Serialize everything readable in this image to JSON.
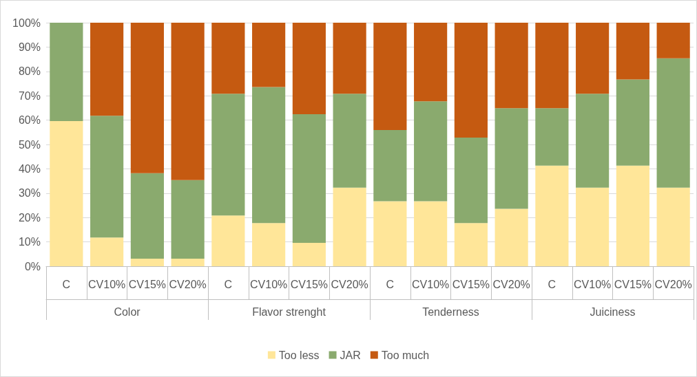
{
  "chart_data": {
    "type": "bar",
    "stacked": true,
    "categories": [
      "C",
      "CV10%",
      "CV15%",
      "CV20%",
      "C",
      "CV10%",
      "CV15%",
      "CV20%",
      "C",
      "CV10%",
      "CV15%",
      "CV20%",
      "C",
      "CV10%",
      "CV15%",
      "CV20%"
    ],
    "annotations": [
      "Color",
      "Flavor strenght",
      "Tenderness",
      "Juiciness"
    ],
    "series": [
      {
        "name": "Too less",
        "color": "#ffe699",
        "values": [
          59.6,
          11.8,
          3.1,
          3.1,
          20.8,
          17.7,
          9.6,
          32.3,
          26.7,
          26.7,
          17.7,
          23.6,
          41.3,
          32.3,
          41.3,
          32.3
        ]
      },
      {
        "name": "JAR",
        "color": "#8aaa6e",
        "values": [
          40.4,
          50.0,
          35.1,
          32.3,
          50.0,
          55.9,
          52.8,
          38.5,
          29.2,
          41.0,
          35.1,
          41.3,
          23.6,
          38.5,
          35.4,
          53.1
        ]
      },
      {
        "name": "Too much",
        "color": "#c55a11",
        "values": [
          0,
          38.2,
          61.8,
          64.6,
          29.2,
          26.4,
          37.6,
          29.2,
          44.1,
          32.3,
          47.2,
          35.1,
          35.1,
          29.2,
          23.3,
          14.6
        ]
      }
    ],
    "ylim": [
      0,
      100
    ],
    "yticks": [
      {
        "value": 0,
        "label": "0%"
      },
      {
        "value": 10,
        "label": "10%"
      },
      {
        "value": 20,
        "label": "20%"
      },
      {
        "value": 30,
        "label": "30%"
      },
      {
        "value": 40,
        "label": "40%"
      },
      {
        "value": 50,
        "label": "50%"
      },
      {
        "value": 60,
        "label": "60%"
      },
      {
        "value": 70,
        "label": "70%"
      },
      {
        "value": 80,
        "label": "80%"
      },
      {
        "value": 90,
        "label": "90%"
      },
      {
        "value": 100,
        "label": "100%"
      }
    ],
    "grid": "y",
    "legend": "bottom"
  }
}
